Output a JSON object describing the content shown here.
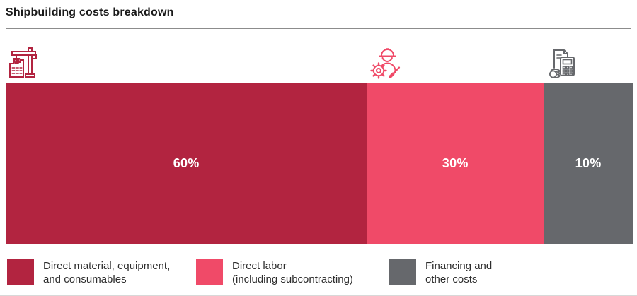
{
  "header": {
    "title": "Shipbuilding costs breakdown"
  },
  "chart_data": {
    "type": "bar",
    "subtype": "horizontal-stacked-percentage",
    "title": "Shipbuilding costs breakdown",
    "unit": "%",
    "categories": [
      "Direct material, equipment, and consumables",
      "Direct labor (including subcontracting)",
      "Financing and other costs"
    ],
    "values": [
      60,
      30,
      10
    ],
    "segments": [
      {
        "label": "Direct material, equipment, and consumables",
        "value": 60,
        "value_label": "60%",
        "color": "#B22440",
        "icon": "crane-building-icon"
      },
      {
        "label": "Direct labor (including subcontracting)",
        "value": 30,
        "value_label": "30%",
        "color": "#F04A68",
        "icon": "worker-gear-icon"
      },
      {
        "label": "Financing and other costs",
        "value": 10,
        "value_label": "10%",
        "color": "#66686C",
        "icon": "document-calculator-coins-icon"
      }
    ],
    "legend_position": "bottom",
    "layout_widths_pct": [
      57.6,
      28.2,
      14.2
    ],
    "value_label_color": "#FFFFFF",
    "grid": false
  },
  "legend": {
    "items": [
      {
        "lines": [
          "Direct material, equipment,",
          "and consumables"
        ]
      },
      {
        "lines": [
          "Direct labor",
          "(including subcontracting)"
        ]
      },
      {
        "lines": [
          "Financing and",
          "other costs"
        ]
      }
    ]
  }
}
